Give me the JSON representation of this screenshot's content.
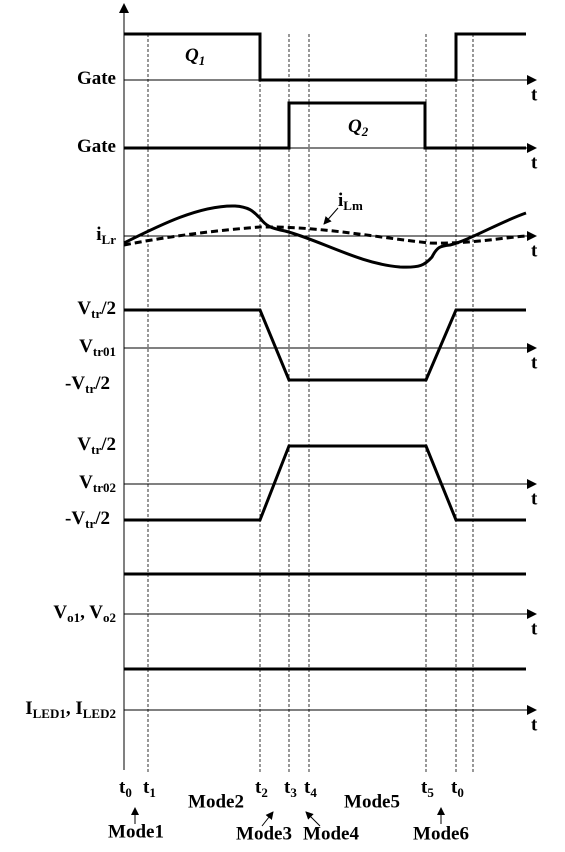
{
  "axis_label": "t",
  "waveforms": [
    {
      "labels": [
        [
          {
            "text": "Gate"
          }
        ]
      ],
      "tag": [
        {
          "text": "Q"
        },
        {
          "text": "1",
          "sub": true
        }
      ]
    },
    {
      "labels": [
        [
          {
            "text": "Gate"
          }
        ]
      ],
      "tag": [
        {
          "text": "Q"
        },
        {
          "text": "2",
          "sub": true
        }
      ]
    },
    {
      "labels": [
        [
          {
            "text": "i"
          },
          {
            "text": "Lr",
            "sub": true
          }
        ]
      ],
      "tag": [
        {
          "text": "i"
        },
        {
          "text": "Lm",
          "sub": true
        }
      ]
    },
    {
      "labels": [
        [
          {
            "text": "V"
          },
          {
            "text": "tr",
            "sub": true
          },
          {
            "text": "/2"
          }
        ],
        [
          {
            "text": "V"
          },
          {
            "text": "tr01",
            "sub": true
          }
        ],
        [
          {
            "text": "-V"
          },
          {
            "text": "tr",
            "sub": true
          },
          {
            "text": "/2"
          }
        ]
      ]
    },
    {
      "labels": [
        [
          {
            "text": "V"
          },
          {
            "text": "tr",
            "sub": true
          },
          {
            "text": "/2"
          }
        ],
        [
          {
            "text": "V"
          },
          {
            "text": "tr02",
            "sub": true
          }
        ],
        [
          {
            "text": "-V"
          },
          {
            "text": "tr",
            "sub": true
          },
          {
            "text": "/2"
          }
        ]
      ]
    },
    {
      "labels": [
        [
          {
            "text": "V"
          },
          {
            "text": "o1",
            "sub": true
          },
          {
            "text": ", V"
          },
          {
            "text": "o2",
            "sub": true
          }
        ]
      ]
    },
    {
      "labels": [
        [
          {
            "text": "I"
          },
          {
            "text": "LED1",
            "sub": true
          },
          {
            "text": ", I"
          },
          {
            "text": "LED2",
            "sub": true
          }
        ]
      ]
    }
  ],
  "time_marks": [
    [
      {
        "text": "t"
      },
      {
        "text": "0",
        "sub": true
      }
    ],
    [
      {
        "text": "t"
      },
      {
        "text": "1",
        "sub": true
      }
    ],
    [
      {
        "text": "t"
      },
      {
        "text": "2",
        "sub": true
      }
    ],
    [
      {
        "text": "t"
      },
      {
        "text": "3",
        "sub": true
      }
    ],
    [
      {
        "text": "t"
      },
      {
        "text": "4",
        "sub": true
      }
    ],
    [
      {
        "text": "t"
      },
      {
        "text": "5",
        "sub": true
      }
    ],
    [
      {
        "text": "t"
      },
      {
        "text": "0",
        "sub": true
      }
    ]
  ],
  "modes": [
    "Mode1",
    "Mode2",
    "Mode3",
    "Mode4",
    "Mode5",
    "Mode6"
  ]
}
